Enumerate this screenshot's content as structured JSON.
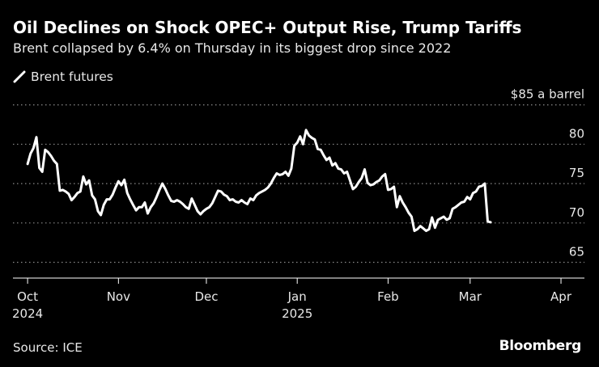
{
  "colors": {
    "background": "#000000",
    "series": "#ffffff",
    "grid": "#8a8a8a",
    "text": "#e8e8e8"
  },
  "header": {
    "title": "Oil Declines on Shock OPEC+ Output Rise, Trump Tariffs",
    "subtitle": "Brent collapsed by 6.4% on Thursday in its biggest drop since 2022"
  },
  "footer": {
    "source": "Source: ICE",
    "brand": "Bloomberg"
  },
  "chart_data": {
    "type": "line",
    "title": "Oil Declines on Shock OPEC+ Output Rise, Trump Tariffs",
    "subtitle": "Brent collapsed by 6.4% on Thursday in its biggest drop since 2022",
    "xlabel": "",
    "ylabel": "$ a barrel",
    "ylim": [
      63,
      86
    ],
    "grid": true,
    "legend": "top-left",
    "y_ticks": [
      {
        "value": 85,
        "label": "$85 a barrel"
      },
      {
        "value": 80,
        "label": "80"
      },
      {
        "value": 75,
        "label": "75"
      },
      {
        "value": 70,
        "label": "70"
      },
      {
        "value": 65,
        "label": "65"
      }
    ],
    "x_ticks": [
      {
        "day": 0,
        "label": "Oct",
        "sublabel": "2024"
      },
      {
        "day": 31,
        "label": "Nov",
        "sublabel": ""
      },
      {
        "day": 61,
        "label": "Dec",
        "sublabel": ""
      },
      {
        "day": 92,
        "label": "Jan",
        "sublabel": "2025"
      },
      {
        "day": 123,
        "label": "Feb",
        "sublabel": ""
      },
      {
        "day": 151,
        "label": "Mar",
        "sublabel": ""
      },
      {
        "day": 182,
        "label": "Apr",
        "sublabel": ""
      }
    ],
    "x_range_days": [
      -5,
      190
    ],
    "series": [
      {
        "name": "Brent futures",
        "x_unit": "days since 2024-10-01",
        "points": [
          [
            0,
            77.5
          ],
          [
            1,
            78.8
          ],
          [
            2,
            79.5
          ],
          [
            3,
            80.9
          ],
          [
            4,
            77.0
          ],
          [
            5,
            76.5
          ],
          [
            6,
            79.3
          ],
          [
            7,
            79.0
          ],
          [
            8,
            78.5
          ],
          [
            9,
            77.9
          ],
          [
            10,
            77.5
          ],
          [
            11,
            74.1
          ],
          [
            12,
            74.2
          ],
          [
            13,
            74.0
          ],
          [
            14,
            73.7
          ],
          [
            15,
            72.9
          ],
          [
            16,
            73.3
          ],
          [
            17,
            73.8
          ],
          [
            18,
            74.0
          ],
          [
            19,
            75.9
          ],
          [
            20,
            74.9
          ],
          [
            21,
            75.4
          ],
          [
            22,
            73.5
          ],
          [
            23,
            73.0
          ],
          [
            24,
            71.5
          ],
          [
            25,
            71.0
          ],
          [
            26,
            72.3
          ],
          [
            27,
            73.0
          ],
          [
            28,
            73.0
          ],
          [
            29,
            73.6
          ],
          [
            30,
            74.5
          ],
          [
            31,
            75.3
          ],
          [
            32,
            74.8
          ],
          [
            33,
            75.5
          ],
          [
            34,
            73.8
          ],
          [
            35,
            73.0
          ],
          [
            36,
            72.3
          ],
          [
            37,
            71.6
          ],
          [
            38,
            72.0
          ],
          [
            39,
            72.0
          ],
          [
            40,
            72.6
          ],
          [
            41,
            71.2
          ],
          [
            42,
            72.0
          ],
          [
            43,
            72.5
          ],
          [
            44,
            73.3
          ],
          [
            45,
            74.2
          ],
          [
            46,
            75.0
          ],
          [
            47,
            74.3
          ],
          [
            48,
            73.5
          ],
          [
            49,
            72.8
          ],
          [
            50,
            72.7
          ],
          [
            51,
            72.9
          ],
          [
            52,
            72.7
          ],
          [
            53,
            72.4
          ],
          [
            54,
            72.0
          ],
          [
            55,
            71.8
          ],
          [
            56,
            73.1
          ],
          [
            57,
            72.3
          ],
          [
            58,
            71.5
          ],
          [
            59,
            71.1
          ],
          [
            60,
            71.5
          ],
          [
            61,
            71.8
          ],
          [
            62,
            72.0
          ],
          [
            63,
            72.5
          ],
          [
            64,
            73.3
          ],
          [
            65,
            74.1
          ],
          [
            66,
            74.0
          ],
          [
            67,
            73.6
          ],
          [
            68,
            73.4
          ],
          [
            69,
            72.9
          ],
          [
            70,
            73.0
          ],
          [
            71,
            72.7
          ],
          [
            72,
            72.6
          ],
          [
            73,
            72.9
          ],
          [
            74,
            72.6
          ],
          [
            75,
            72.4
          ],
          [
            76,
            73.1
          ],
          [
            77,
            72.9
          ],
          [
            78,
            73.5
          ],
          [
            79,
            73.8
          ],
          [
            80,
            74.0
          ],
          [
            81,
            74.2
          ],
          [
            82,
            74.5
          ],
          [
            83,
            75.0
          ],
          [
            84,
            75.7
          ],
          [
            85,
            76.3
          ],
          [
            86,
            76.1
          ],
          [
            87,
            76.2
          ],
          [
            88,
            76.5
          ],
          [
            89,
            76.0
          ],
          [
            90,
            76.9
          ],
          [
            91,
            79.8
          ],
          [
            92,
            80.2
          ],
          [
            93,
            81.0
          ],
          [
            94,
            80.0
          ],
          [
            95,
            81.8
          ],
          [
            96,
            81.1
          ],
          [
            97,
            80.8
          ],
          [
            98,
            80.6
          ],
          [
            99,
            79.4
          ],
          [
            100,
            79.3
          ],
          [
            101,
            78.6
          ],
          [
            102,
            78.0
          ],
          [
            103,
            78.3
          ],
          [
            104,
            77.3
          ],
          [
            105,
            77.6
          ],
          [
            106,
            76.9
          ],
          [
            107,
            76.8
          ],
          [
            108,
            76.3
          ],
          [
            109,
            76.5
          ],
          [
            110,
            75.4
          ],
          [
            111,
            74.3
          ],
          [
            112,
            74.6
          ],
          [
            113,
            75.2
          ],
          [
            114,
            75.7
          ],
          [
            115,
            76.8
          ],
          [
            116,
            75.1
          ],
          [
            117,
            74.8
          ],
          [
            118,
            74.9
          ],
          [
            119,
            75.2
          ],
          [
            120,
            75.4
          ],
          [
            121,
            75.9
          ],
          [
            122,
            76.2
          ],
          [
            123,
            74.2
          ],
          [
            124,
            74.3
          ],
          [
            125,
            74.6
          ],
          [
            126,
            72.0
          ],
          [
            127,
            73.4
          ],
          [
            128,
            72.6
          ],
          [
            129,
            72.0
          ],
          [
            130,
            71.3
          ],
          [
            131,
            70.8
          ],
          [
            132,
            69.0
          ],
          [
            133,
            69.2
          ],
          [
            134,
            69.6
          ],
          [
            135,
            69.3
          ],
          [
            136,
            69.0
          ],
          [
            137,
            69.2
          ],
          [
            138,
            70.7
          ],
          [
            139,
            69.4
          ],
          [
            140,
            70.4
          ],
          [
            141,
            70.6
          ],
          [
            142,
            70.8
          ],
          [
            143,
            70.4
          ],
          [
            144,
            70.6
          ],
          [
            145,
            71.8
          ],
          [
            146,
            72.0
          ],
          [
            147,
            72.3
          ],
          [
            148,
            72.6
          ],
          [
            149,
            72.7
          ],
          [
            150,
            73.3
          ],
          [
            151,
            73.0
          ],
          [
            152,
            73.8
          ],
          [
            153,
            74.0
          ],
          [
            154,
            74.6
          ],
          [
            155,
            74.7
          ],
          [
            156,
            75.0
          ],
          [
            157,
            70.2
          ],
          [
            158,
            70.1
          ]
        ]
      }
    ]
  }
}
